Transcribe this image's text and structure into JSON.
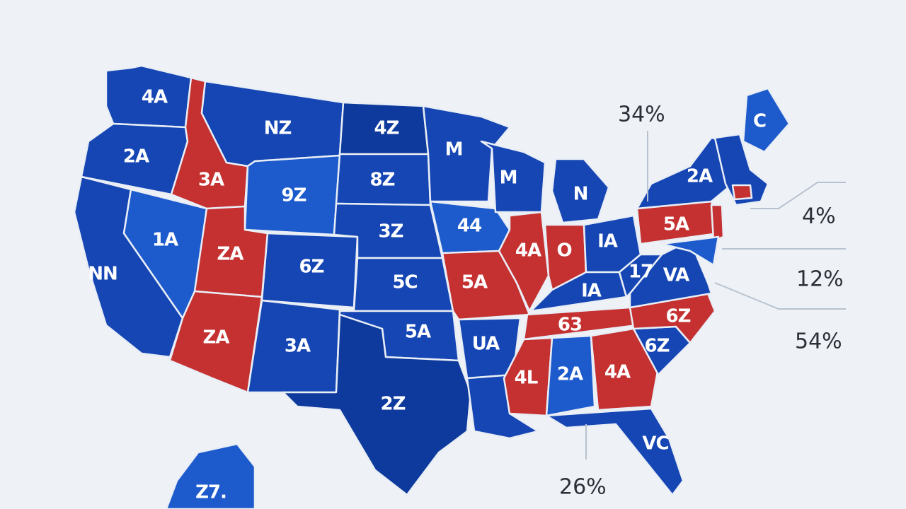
{
  "colors": {
    "background": "#eef2f6",
    "blue_dark": "#0d3a9c",
    "blue_mid": "#1546b4",
    "blue_light": "#1d5bcc",
    "red": "#c53030",
    "label_text": "#ffffff",
    "callout_text": "#2b2f38"
  },
  "states": [
    {
      "id": "WA",
      "label": "4A",
      "party": "blue_mid"
    },
    {
      "id": "OR",
      "label": "2A",
      "party": "blue_mid"
    },
    {
      "id": "CA",
      "label": "NN",
      "party": "blue_mid"
    },
    {
      "id": "NV",
      "label": "1A",
      "party": "blue_light"
    },
    {
      "id": "ID",
      "label": "3A",
      "party": "red"
    },
    {
      "id": "MT",
      "label": "NZ",
      "party": "blue_mid"
    },
    {
      "id": "WY",
      "label": "9Z",
      "party": "blue_light"
    },
    {
      "id": "UT",
      "label": "ZA",
      "party": "red"
    },
    {
      "id": "AZ",
      "label": "ZA",
      "party": "red"
    },
    {
      "id": "CO",
      "label": "6Z",
      "party": "blue_mid"
    },
    {
      "id": "NM",
      "label": "3A",
      "party": "blue_mid"
    },
    {
      "id": "ND",
      "label": "4Z",
      "party": "blue_dark"
    },
    {
      "id": "SD",
      "label": "8Z",
      "party": "blue_mid"
    },
    {
      "id": "NE",
      "label": "3Z",
      "party": "blue_mid"
    },
    {
      "id": "KS",
      "label": "5C",
      "party": "blue_mid"
    },
    {
      "id": "OK",
      "label": "5A",
      "party": "blue_mid"
    },
    {
      "id": "TX",
      "label": "2Z",
      "party": "blue_dark"
    },
    {
      "id": "MN",
      "label": "M",
      "party": "blue_mid"
    },
    {
      "id": "IA",
      "label": "44",
      "party": "blue_light"
    },
    {
      "id": "MO",
      "label": "5A",
      "party": "red"
    },
    {
      "id": "AR",
      "label": "UA",
      "party": "blue_mid"
    },
    {
      "id": "LA",
      "label": "",
      "party": "blue_mid"
    },
    {
      "id": "WI",
      "label": "M",
      "party": "blue_mid"
    },
    {
      "id": "IL",
      "label": "4A",
      "party": "red"
    },
    {
      "id": "MI",
      "label": "N",
      "party": "blue_mid"
    },
    {
      "id": "IN",
      "label": "O",
      "party": "red"
    },
    {
      "id": "OH",
      "label": "IA",
      "party": "blue_mid"
    },
    {
      "id": "KY",
      "label": "IA",
      "party": "blue_mid"
    },
    {
      "id": "TN",
      "label": "63",
      "party": "red"
    },
    {
      "id": "MS",
      "label": "4L",
      "party": "red"
    },
    {
      "id": "AL",
      "label": "2A",
      "party": "blue_light"
    },
    {
      "id": "GA",
      "label": "4A",
      "party": "red"
    },
    {
      "id": "FL",
      "label": "VC",
      "party": "blue_mid"
    },
    {
      "id": "SC",
      "label": "6Z",
      "party": "blue_mid"
    },
    {
      "id": "NC",
      "label": "6Z",
      "party": "red"
    },
    {
      "id": "VA",
      "label": "VA",
      "party": "blue_mid"
    },
    {
      "id": "WV",
      "label": "17",
      "party": "blue_mid"
    },
    {
      "id": "PA",
      "label": "5A",
      "party": "red"
    },
    {
      "id": "NY",
      "label": "2A",
      "party": "blue_mid"
    },
    {
      "id": "NJ",
      "label": "",
      "party": "red"
    },
    {
      "id": "MD",
      "label": "",
      "party": "blue_light"
    },
    {
      "id": "NE_STATES",
      "label": "",
      "party": "blue_mid"
    },
    {
      "id": "CT",
      "label": "",
      "party": "red"
    },
    {
      "id": "ME",
      "label": "C",
      "party": "blue_light"
    },
    {
      "id": "AK",
      "label": "Z7.",
      "party": "blue_light"
    }
  ],
  "callouts": [
    {
      "id": "callout-top",
      "text": "34%"
    },
    {
      "id": "callout-right-1",
      "text": "4%"
    },
    {
      "id": "callout-right-2",
      "text": "12%"
    },
    {
      "id": "callout-right-3",
      "text": "54%"
    },
    {
      "id": "callout-bottom",
      "text": "26%"
    }
  ]
}
